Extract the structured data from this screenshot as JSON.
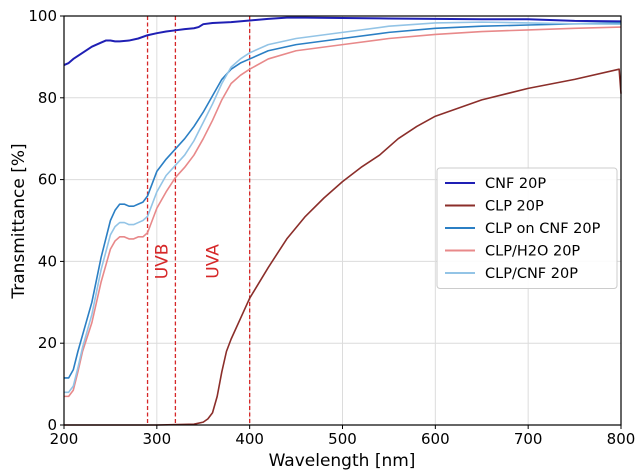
{
  "chart_data": {
    "type": "line",
    "xlabel": "Wavelength [nm]",
    "ylabel": "Transmittance [%]",
    "xlim": [
      200,
      800
    ],
    "ylim": [
      0,
      100
    ],
    "xticks": [
      "200",
      "300",
      "400",
      "500",
      "600",
      "700",
      "800"
    ],
    "yticks": [
      "0",
      "20",
      "40",
      "60",
      "80",
      "100"
    ],
    "grid": true,
    "legend_position": "center-right",
    "annotation_color": "#d62728",
    "vlines": [
      290,
      320,
      400
    ],
    "annotations": [
      {
        "text": "UVB",
        "x": 305,
        "y": 40
      },
      {
        "text": "UVA",
        "x": 360,
        "y": 40
      }
    ],
    "series": [
      {
        "name": "CNF 20P",
        "color": "#1f1fb4",
        "x": [
          200,
          205,
          210,
          220,
          230,
          240,
          245,
          250,
          255,
          260,
          270,
          280,
          290,
          300,
          310,
          320,
          330,
          340,
          345,
          350,
          360,
          380,
          400,
          420,
          440,
          460,
          500,
          550,
          600,
          650,
          700,
          750,
          800
        ],
        "y": [
          88,
          88.5,
          89.5,
          91,
          92.5,
          93.5,
          94,
          94,
          93.8,
          93.8,
          94,
          94.5,
          95.3,
          95.8,
          96.2,
          96.5,
          96.8,
          97,
          97.3,
          98,
          98.3,
          98.5,
          98.9,
          99.3,
          99.6,
          99.6,
          99.5,
          99.4,
          99.3,
          99.2,
          99.2,
          98.8,
          98.7
        ]
      },
      {
        "name": "CLP 20P",
        "color": "#8b2e2a",
        "x": [
          200,
          300,
          340,
          350,
          355,
          360,
          365,
          370,
          375,
          380,
          390,
          400,
          420,
          440,
          460,
          480,
          500,
          520,
          530,
          540,
          560,
          580,
          600,
          650,
          700,
          750,
          798,
          800
        ],
        "y": [
          0,
          0,
          0.2,
          0.7,
          1.5,
          3,
          7,
          13,
          18,
          21,
          26,
          31,
          38.5,
          45.5,
          51,
          55.5,
          59.5,
          63,
          64.5,
          66,
          70,
          73,
          75.5,
          79.5,
          82.3,
          84.5,
          87,
          81
        ]
      },
      {
        "name": "CLP on CNF 20P",
        "color": "#2b7fc4",
        "x": [
          200,
          205,
          210,
          215,
          220,
          230,
          240,
          250,
          255,
          260,
          265,
          270,
          275,
          280,
          285,
          290,
          300,
          310,
          320,
          330,
          340,
          350,
          360,
          370,
          380,
          390,
          400,
          420,
          450,
          500,
          550,
          600,
          650,
          700,
          750,
          800
        ],
        "y": [
          11.5,
          11.5,
          13.5,
          18,
          22,
          30,
          41,
          50,
          52.5,
          54,
          54,
          53.5,
          53.5,
          54,
          54.5,
          56,
          62,
          65,
          67.5,
          70,
          73,
          76.5,
          80.5,
          84.5,
          87,
          88.5,
          89.5,
          91.5,
          93,
          94.5,
          96,
          97,
          97.5,
          97.8,
          98.1,
          98.3
        ]
      },
      {
        "name": "CLP/H2O 20P",
        "color": "#e8898a",
        "x": [
          200,
          205,
          210,
          215,
          220,
          230,
          240,
          250,
          255,
          260,
          265,
          270,
          275,
          280,
          285,
          290,
          300,
          310,
          320,
          330,
          340,
          350,
          360,
          370,
          380,
          390,
          400,
          420,
          450,
          500,
          550,
          600,
          650,
          700,
          750,
          800
        ],
        "y": [
          7,
          7,
          8.5,
          13,
          18,
          25,
          35,
          43,
          45,
          46,
          46,
          45.5,
          45.5,
          46,
          46,
          47,
          53,
          57,
          60.5,
          63,
          66,
          70,
          74.5,
          79.5,
          83.5,
          85.5,
          87,
          89.5,
          91.5,
          93,
          94.5,
          95.5,
          96.2,
          96.6,
          97,
          97.3
        ]
      },
      {
        "name": "CLP/CNF 20P",
        "color": "#93c4e6",
        "x": [
          200,
          205,
          210,
          215,
          220,
          230,
          240,
          250,
          255,
          260,
          265,
          270,
          275,
          280,
          285,
          290,
          300,
          310,
          320,
          330,
          340,
          350,
          360,
          370,
          380,
          390,
          400,
          420,
          450,
          500,
          550,
          600,
          650,
          700,
          750,
          800
        ],
        "y": [
          8,
          8,
          9.5,
          14,
          19,
          27,
          38,
          46.5,
          48.5,
          49.5,
          49.5,
          49,
          49,
          49.5,
          50,
          51,
          57,
          61,
          63.5,
          66,
          69.5,
          74,
          78.5,
          83.5,
          87.5,
          89.5,
          91,
          93,
          94.5,
          96,
          97.5,
          98.3,
          98.5,
          98.3,
          98.1,
          98
        ]
      }
    ]
  }
}
